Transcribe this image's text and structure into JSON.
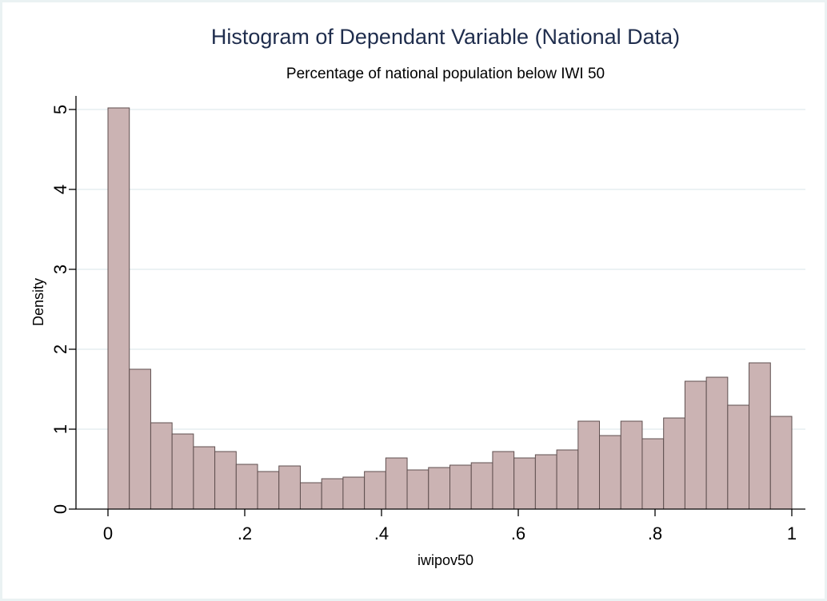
{
  "chart_data": {
    "type": "bar",
    "title": "Histogram of Dependant Variable (National Data)",
    "subtitle": "Percentage of national population below IWI 50",
    "xlabel": "iwipov50",
    "ylabel": "Density",
    "xlim": [
      0,
      1
    ],
    "ylim": [
      0,
      5
    ],
    "grid": true,
    "bin_width": 0.03125,
    "bin_starts": [
      0,
      0.03125,
      0.0625,
      0.09375,
      0.125,
      0.15625,
      0.1875,
      0.21875,
      0.25,
      0.28125,
      0.3125,
      0.34375,
      0.375,
      0.40625,
      0.4375,
      0.46875,
      0.5,
      0.53125,
      0.5625,
      0.59375,
      0.625,
      0.65625,
      0.6875,
      0.71875,
      0.75,
      0.78125,
      0.8125,
      0.84375,
      0.875,
      0.90625,
      0.9375,
      0.96875
    ],
    "values": [
      5.02,
      1.75,
      1.08,
      0.94,
      0.78,
      0.72,
      0.56,
      0.47,
      0.54,
      0.33,
      0.38,
      0.4,
      0.47,
      0.64,
      0.49,
      0.52,
      0.55,
      0.58,
      0.72,
      0.64,
      0.68,
      0.74,
      1.1,
      0.92,
      1.1,
      0.88,
      1.14,
      1.6,
      1.65,
      1.3,
      1.83,
      1.16
    ],
    "x_ticks": [
      0,
      0.2,
      0.4,
      0.6,
      0.8,
      1
    ],
    "x_tick_labels": [
      "0",
      ".2",
      ".4",
      ".6",
      ".8",
      "1"
    ],
    "y_ticks": [
      0,
      1,
      2,
      3,
      4,
      5
    ],
    "y_tick_labels": [
      "0",
      "1",
      "2",
      "3",
      "4",
      "5"
    ],
    "colors": {
      "bar_fill": "#cbb3b3",
      "bar_edge": "#5f4f4f",
      "title": "#1f2d4d",
      "grid": "#e6eef0"
    }
  }
}
